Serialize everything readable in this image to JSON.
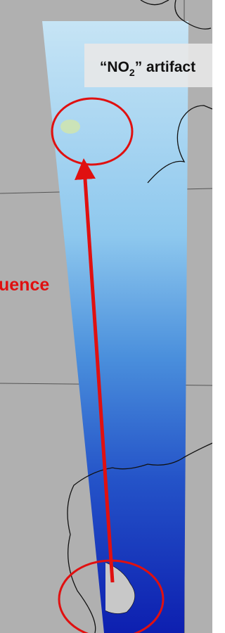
{
  "annotation": {
    "before": "“NO",
    "subscript": "2",
    "after": "” artifact"
  },
  "arrow_label": "uence"
}
